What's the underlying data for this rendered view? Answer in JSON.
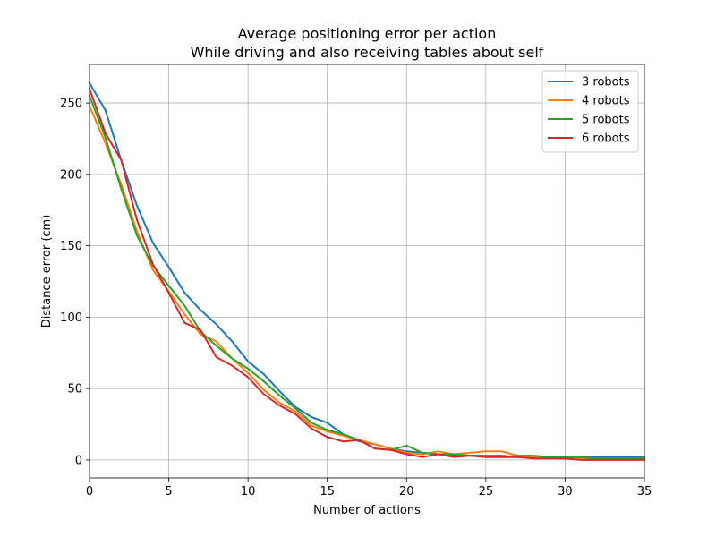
{
  "chart_data": {
    "type": "line",
    "title": "Average positioning error per action",
    "subtitle": "While driving and also receiving tables about self",
    "xlabel": "Number of actions",
    "ylabel": "Distance error (cm)",
    "xlim": [
      0,
      35
    ],
    "ylim": [
      -12.6,
      277
    ],
    "xticks": [
      0,
      5,
      10,
      15,
      20,
      25,
      30,
      35
    ],
    "yticks": [
      0,
      50,
      100,
      150,
      200,
      250
    ],
    "grid": true,
    "legend_position": "top-right",
    "x": [
      0,
      1,
      2,
      3,
      4,
      5,
      6,
      7,
      8,
      9,
      10,
      11,
      12,
      13,
      14,
      15,
      16,
      17,
      18,
      19,
      20,
      21,
      22,
      23,
      24,
      25,
      26,
      27,
      28,
      29,
      30,
      31,
      32,
      33,
      34,
      35
    ],
    "series": [
      {
        "name": "3 robots",
        "color": "#1f77b4",
        "values": [
          264,
          245,
          210,
          178,
          152,
          135,
          117,
          105,
          95,
          83,
          69,
          60,
          48,
          37,
          30,
          26,
          18,
          13,
          11,
          8,
          6,
          5,
          4,
          3,
          3,
          3,
          3,
          2,
          2,
          2,
          2,
          2,
          2,
          2,
          2,
          2
        ]
      },
      {
        "name": "4 robots",
        "color": "#ff7f0e",
        "values": [
          248,
          222,
          193,
          160,
          133,
          118,
          102,
          88,
          83,
          71,
          61,
          49,
          40,
          34,
          24,
          20,
          17,
          14,
          11,
          8,
          5,
          4,
          6,
          4,
          5,
          6,
          6,
          3,
          2,
          2,
          1,
          1,
          1,
          1,
          1,
          1
        ]
      },
      {
        "name": "5 robots",
        "color": "#2ca02c",
        "values": [
          255,
          226,
          190,
          157,
          136,
          122,
          108,
          90,
          80,
          71,
          64,
          55,
          45,
          36,
          26,
          21,
          18,
          14,
          8,
          7,
          10,
          5,
          4,
          4,
          3,
          3,
          2,
          3,
          3,
          2,
          2,
          2,
          1,
          1,
          1,
          1
        ]
      },
      {
        "name": "6 robots",
        "color": "#d62728",
        "values": [
          260,
          229,
          210,
          168,
          137,
          117,
          96,
          91,
          72,
          66,
          58,
          46,
          38,
          32,
          22,
          16,
          13,
          14,
          8,
          7,
          4,
          2,
          4,
          2,
          3,
          2,
          2,
          2,
          1,
          1,
          1,
          0,
          0,
          0,
          0,
          0
        ]
      }
    ]
  }
}
